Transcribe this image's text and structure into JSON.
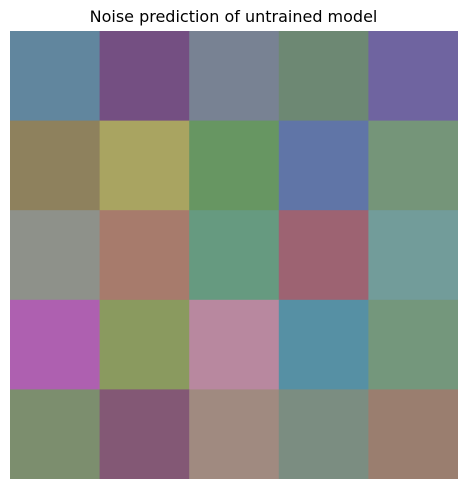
{
  "chart_data": {
    "type": "heatmap",
    "title": "Noise prediction of untrained model",
    "rows": 5,
    "cols": 5,
    "axes_visible": false,
    "grid": false,
    "legend": "none",
    "cells": [
      [
        "#61869E",
        "#744F82",
        "#788293",
        "#6D8873",
        "#6F64A0"
      ],
      [
        "#8E815D",
        "#A9A461",
        "#679662",
        "#6075A7",
        "#759579"
      ],
      [
        "#8E918A",
        "#A77B6C",
        "#669A80",
        "#9D6372",
        "#729C9A"
      ],
      [
        "#AE60B0",
        "#8A9A5F",
        "#B8889F",
        "#5690A4",
        "#74977C"
      ],
      [
        "#7C8E6E",
        "#835875",
        "#A08A80",
        "#7B8D81",
        "#9A7E6F"
      ]
    ]
  }
}
